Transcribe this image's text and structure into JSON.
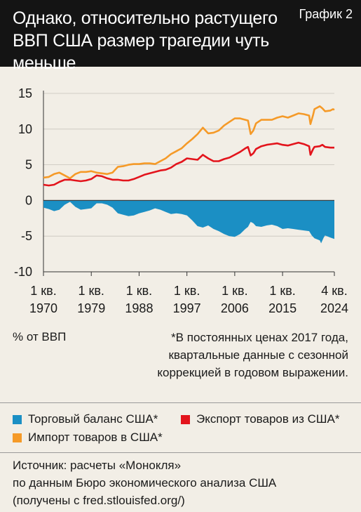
{
  "header": {
    "title": "Однако, относительно растущего ВВП США размер трагедии чуть меньше",
    "label": "График 2"
  },
  "colors": {
    "balance": "#1b8fc4",
    "exports": "#e3141c",
    "imports": "#f59a28",
    "grid": "#c8c4bc",
    "axis": "#333333"
  },
  "chart_data": {
    "type": "line",
    "title": "Однако, относительно растущего ВВП США размер трагедии чуть меньше",
    "unit_label": "% от ВВП",
    "ylim": [
      -10,
      15
    ],
    "yticks": [
      "15",
      "10",
      "5",
      "0",
      "-5",
      "-10"
    ],
    "xlim": [
      1970,
      2024.75
    ],
    "xticks": [
      {
        "x": 1970,
        "line1": "1 кв.",
        "line2": "1970"
      },
      {
        "x": 1979,
        "line1": "1 кв.",
        "line2": "1979"
      },
      {
        "x": 1988,
        "line1": "1 кв.",
        "line2": "1988"
      },
      {
        "x": 1997,
        "line1": "1 кв.",
        "line2": "1997"
      },
      {
        "x": 2006,
        "line1": "1 кв.",
        "line2": "2006"
      },
      {
        "x": 2015,
        "line1": "1 кв.",
        "line2": "2015"
      },
      {
        "x": 2024.75,
        "line1": "4 кв.",
        "line2": "2024"
      }
    ],
    "series": [
      {
        "name": "Импорт товаров в США*",
        "color": "#f59a28",
        "points": [
          [
            1970,
            3.2
          ],
          [
            1971,
            3.3
          ],
          [
            1972,
            3.7
          ],
          [
            1973,
            3.9
          ],
          [
            1974,
            3.5
          ],
          [
            1975,
            3.1
          ],
          [
            1976,
            3.7
          ],
          [
            1977,
            4.0
          ],
          [
            1978,
            4.0
          ],
          [
            1979,
            4.1
          ],
          [
            1980,
            3.9
          ],
          [
            1981,
            3.8
          ],
          [
            1982,
            3.7
          ],
          [
            1983,
            3.9
          ],
          [
            1984,
            4.7
          ],
          [
            1985,
            4.8
          ],
          [
            1986,
            5.0
          ],
          [
            1987,
            5.1
          ],
          [
            1988,
            5.1
          ],
          [
            1989,
            5.2
          ],
          [
            1990,
            5.2
          ],
          [
            1991,
            5.1
          ],
          [
            1992,
            5.5
          ],
          [
            1993,
            5.9
          ],
          [
            1994,
            6.5
          ],
          [
            1995,
            6.9
          ],
          [
            1996,
            7.3
          ],
          [
            1997,
            8.0
          ],
          [
            1998,
            8.6
          ],
          [
            1999,
            9.3
          ],
          [
            2000,
            10.2
          ],
          [
            2001,
            9.4
          ],
          [
            2002,
            9.5
          ],
          [
            2003,
            9.8
          ],
          [
            2004,
            10.5
          ],
          [
            2005,
            11.0
          ],
          [
            2006,
            11.5
          ],
          [
            2007,
            11.5
          ],
          [
            2008,
            11.3
          ],
          [
            2008.5,
            11.2
          ],
          [
            2009,
            9.3
          ],
          [
            2009.5,
            9.8
          ],
          [
            2010,
            10.8
          ],
          [
            2011,
            11.3
          ],
          [
            2012,
            11.3
          ],
          [
            2013,
            11.3
          ],
          [
            2014,
            11.6
          ],
          [
            2015,
            11.8
          ],
          [
            2016,
            11.6
          ],
          [
            2017,
            11.9
          ],
          [
            2018,
            12.2
          ],
          [
            2019,
            12.1
          ],
          [
            2020,
            11.9
          ],
          [
            2020.25,
            10.7
          ],
          [
            2020.75,
            12.0
          ],
          [
            2021,
            12.8
          ],
          [
            2022,
            13.2
          ],
          [
            2022.5,
            12.9
          ],
          [
            2023,
            12.5
          ],
          [
            2024,
            12.6
          ],
          [
            2024.5,
            12.8
          ],
          [
            2024.75,
            12.7
          ]
        ]
      },
      {
        "name": "Экспорт товаров из США*",
        "color": "#e3141c",
        "points": [
          [
            1970,
            2.2
          ],
          [
            1971,
            2.1
          ],
          [
            1972,
            2.2
          ],
          [
            1973,
            2.6
          ],
          [
            1974,
            2.9
          ],
          [
            1975,
            2.9
          ],
          [
            1976,
            2.8
          ],
          [
            1977,
            2.7
          ],
          [
            1978,
            2.8
          ],
          [
            1979,
            3.0
          ],
          [
            1980,
            3.5
          ],
          [
            1981,
            3.4
          ],
          [
            1982,
            3.1
          ],
          [
            1983,
            2.9
          ],
          [
            1984,
            2.9
          ],
          [
            1985,
            2.8
          ],
          [
            1986,
            2.8
          ],
          [
            1987,
            3.0
          ],
          [
            1988,
            3.3
          ],
          [
            1989,
            3.6
          ],
          [
            1990,
            3.8
          ],
          [
            1991,
            4.0
          ],
          [
            1992,
            4.2
          ],
          [
            1993,
            4.3
          ],
          [
            1994,
            4.6
          ],
          [
            1995,
            5.1
          ],
          [
            1996,
            5.4
          ],
          [
            1997,
            5.9
          ],
          [
            1998,
            5.8
          ],
          [
            1999,
            5.7
          ],
          [
            2000,
            6.4
          ],
          [
            2001,
            5.9
          ],
          [
            2002,
            5.5
          ],
          [
            2003,
            5.5
          ],
          [
            2004,
            5.8
          ],
          [
            2005,
            6.0
          ],
          [
            2006,
            6.4
          ],
          [
            2007,
            6.8
          ],
          [
            2008,
            7.3
          ],
          [
            2008.5,
            7.5
          ],
          [
            2009,
            6.3
          ],
          [
            2009.5,
            6.6
          ],
          [
            2010,
            7.2
          ],
          [
            2011,
            7.6
          ],
          [
            2012,
            7.8
          ],
          [
            2013,
            7.9
          ],
          [
            2014,
            8.0
          ],
          [
            2015,
            7.8
          ],
          [
            2016,
            7.7
          ],
          [
            2017,
            7.9
          ],
          [
            2018,
            8.1
          ],
          [
            2019,
            7.9
          ],
          [
            2020,
            7.6
          ],
          [
            2020.25,
            6.4
          ],
          [
            2020.75,
            7.2
          ],
          [
            2021,
            7.5
          ],
          [
            2022,
            7.6
          ],
          [
            2022.5,
            7.8
          ],
          [
            2023,
            7.5
          ],
          [
            2024,
            7.4
          ],
          [
            2024.75,
            7.4
          ]
        ]
      },
      {
        "name": "Торговый баланс США*",
        "color": "#1b8fc4",
        "type": "area",
        "points": [
          [
            1970,
            -1.0
          ],
          [
            1971,
            -1.2
          ],
          [
            1972,
            -1.5
          ],
          [
            1973,
            -1.3
          ],
          [
            1974,
            -0.6
          ],
          [
            1975,
            -0.2
          ],
          [
            1976,
            -0.9
          ],
          [
            1977,
            -1.3
          ],
          [
            1978,
            -1.2
          ],
          [
            1979,
            -1.1
          ],
          [
            1980,
            -0.4
          ],
          [
            1981,
            -0.4
          ],
          [
            1982,
            -0.6
          ],
          [
            1983,
            -1.0
          ],
          [
            1984,
            -1.8
          ],
          [
            1985,
            -2.0
          ],
          [
            1986,
            -2.2
          ],
          [
            1987,
            -2.1
          ],
          [
            1988,
            -1.8
          ],
          [
            1989,
            -1.6
          ],
          [
            1990,
            -1.4
          ],
          [
            1991,
            -1.1
          ],
          [
            1992,
            -1.3
          ],
          [
            1993,
            -1.6
          ],
          [
            1994,
            -1.9
          ],
          [
            1995,
            -1.8
          ],
          [
            1996,
            -1.9
          ],
          [
            1997,
            -2.1
          ],
          [
            1998,
            -2.8
          ],
          [
            1999,
            -3.6
          ],
          [
            2000,
            -3.8
          ],
          [
            2001,
            -3.5
          ],
          [
            2002,
            -4.0
          ],
          [
            2003,
            -4.3
          ],
          [
            2004,
            -4.7
          ],
          [
            2005,
            -5.0
          ],
          [
            2006,
            -5.1
          ],
          [
            2007,
            -4.7
          ],
          [
            2008,
            -4.0
          ],
          [
            2008.5,
            -3.7
          ],
          [
            2009,
            -3.0
          ],
          [
            2009.5,
            -3.2
          ],
          [
            2010,
            -3.6
          ],
          [
            2011,
            -3.7
          ],
          [
            2012,
            -3.5
          ],
          [
            2013,
            -3.4
          ],
          [
            2014,
            -3.6
          ],
          [
            2015,
            -4.0
          ],
          [
            2016,
            -3.9
          ],
          [
            2017,
            -4.0
          ],
          [
            2018,
            -4.1
          ],
          [
            2019,
            -4.2
          ],
          [
            2020,
            -4.3
          ],
          [
            2020.5,
            -4.9
          ],
          [
            2021,
            -5.3
          ],
          [
            2022,
            -5.6
          ],
          [
            2022.25,
            -6.0
          ],
          [
            2022.75,
            -5.2
          ],
          [
            2023,
            -4.9
          ],
          [
            2024,
            -5.2
          ],
          [
            2024.75,
            -5.4
          ]
        ]
      }
    ]
  },
  "note": {
    "lines": [
      "*В постоянных ценах 2017 года,",
      "квартальные данные с сезонной",
      "коррекцией в годовом выражении."
    ]
  },
  "legend": {
    "balance": "Торговый баланс США*",
    "exports": "Экспорт товаров из США*",
    "imports": "Импорт товаров в США*"
  },
  "source": {
    "lines": [
      "Источник: расчеты «Монокля»",
      "по данным Бюро экономического анализа США",
      "(получены с fred.stlouisfed.org/)"
    ]
  }
}
